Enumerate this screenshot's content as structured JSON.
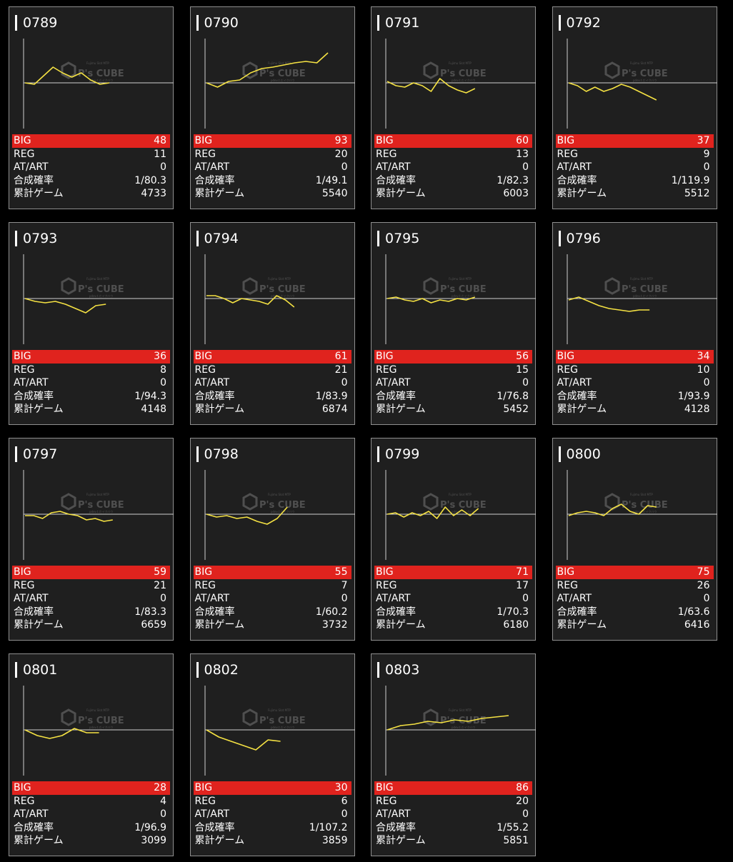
{
  "stat_labels": {
    "big": "BIG",
    "reg": "REG",
    "atart": "AT/ART",
    "prob": "合成確率",
    "games": "累計ゲーム"
  },
  "watermark": {
    "brand": "P's CUBE",
    "sub": "Fujimu Slot MTP",
    "sub2": "pdev.t.だイクバウ"
  },
  "colors": {
    "big_bar": "#e0231e",
    "line": "#f5e243",
    "card_bg": "#1f1f1f",
    "border": "#8f8f8f"
  },
  "machines": [
    {
      "id": "0789",
      "big": "48",
      "reg": "11",
      "atart": "0",
      "prob": "1/80.3",
      "games": "4733",
      "trend": [
        0,
        -2,
        10,
        22,
        14,
        8,
        14,
        4,
        -2,
        0
      ]
    },
    {
      "id": "0790",
      "big": "93",
      "reg": "20",
      "atart": "0",
      "prob": "1/49.1",
      "games": "5540",
      "trend": [
        0,
        -6,
        2,
        4,
        14,
        20,
        22,
        25,
        28,
        30,
        28,
        42
      ]
    },
    {
      "id": "0791",
      "big": "60",
      "reg": "13",
      "atart": "0",
      "prob": "1/82.3",
      "games": "6003",
      "trend": [
        2,
        -4,
        -6,
        0,
        -4,
        -12,
        6,
        -4,
        -10,
        -14,
        -8
      ]
    },
    {
      "id": "0792",
      "big": "37",
      "reg": "9",
      "atart": "0",
      "prob": "1/119.9",
      "games": "5512",
      "trend": [
        0,
        -4,
        -12,
        -6,
        -12,
        -8,
        -2,
        -6,
        -12,
        -18,
        -24
      ]
    },
    {
      "id": "0793",
      "big": "36",
      "reg": "8",
      "atart": "0",
      "prob": "1/94.3",
      "games": "4148",
      "trend": [
        0,
        -4,
        -6,
        -4,
        -8,
        -14,
        -20,
        -10,
        -8
      ]
    },
    {
      "id": "0794",
      "big": "61",
      "reg": "21",
      "atart": "0",
      "prob": "1/83.9",
      "games": "6874",
      "trend": [
        4,
        4,
        0,
        -6,
        0,
        -2,
        -4,
        -8,
        4,
        -2,
        -12
      ]
    },
    {
      "id": "0795",
      "big": "56",
      "reg": "15",
      "atart": "0",
      "prob": "1/76.8",
      "games": "5452",
      "trend": [
        0,
        2,
        -2,
        -4,
        0,
        -6,
        -2,
        -4,
        0,
        -2,
        2
      ]
    },
    {
      "id": "0796",
      "big": "34",
      "reg": "10",
      "atart": "0",
      "prob": "1/93.9",
      "games": "4128",
      "trend": [
        -2,
        2,
        -4,
        -10,
        -14,
        -16,
        -18,
        -16,
        -16
      ]
    },
    {
      "id": "0797",
      "big": "59",
      "reg": "21",
      "atart": "0",
      "prob": "1/83.3",
      "games": "6659",
      "trend": [
        -2,
        -2,
        -6,
        2,
        4,
        0,
        -2,
        -8,
        -6,
        -10,
        -8
      ]
    },
    {
      "id": "0798",
      "big": "55",
      "reg": "7",
      "atart": "0",
      "prob": "1/60.2",
      "games": "3732",
      "trend": [
        0,
        -4,
        -2,
        -6,
        -4,
        -10,
        -14,
        -6,
        10
      ]
    },
    {
      "id": "0799",
      "big": "71",
      "reg": "17",
      "atart": "0",
      "prob": "1/70.3",
      "games": "6180",
      "trend": [
        0,
        2,
        -4,
        2,
        -2,
        4,
        -6,
        10,
        -2,
        6,
        -2,
        8
      ]
    },
    {
      "id": "0800",
      "big": "75",
      "reg": "26",
      "atart": "0",
      "prob": "1/63.6",
      "games": "6416",
      "trend": [
        -2,
        2,
        4,
        2,
        -2,
        8,
        14,
        4,
        0,
        12,
        10
      ]
    },
    {
      "id": "0801",
      "big": "28",
      "reg": "4",
      "atart": "0",
      "prob": "1/96.9",
      "games": "3099",
      "trend": [
        0,
        -8,
        -12,
        -8,
        2,
        -4,
        -4
      ]
    },
    {
      "id": "0802",
      "big": "30",
      "reg": "6",
      "atart": "0",
      "prob": "1/107.2",
      "games": "3859",
      "trend": [
        0,
        -10,
        -16,
        -22,
        -28,
        -14,
        -16
      ]
    },
    {
      "id": "0803",
      "big": "86",
      "reg": "20",
      "atart": "0",
      "prob": "1/55.2",
      "games": "5851",
      "trend": [
        0,
        6,
        8,
        12,
        10,
        14,
        12,
        16,
        18,
        20
      ]
    }
  ]
}
